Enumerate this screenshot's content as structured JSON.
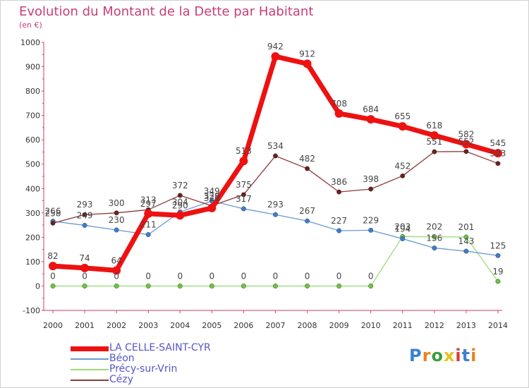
{
  "title": "Evolution du Montant de la Dette par Habitant",
  "unit_label": "(en €)",
  "logo_text": "Proxiti",
  "colors": {
    "title": "#c73e7a",
    "axis": "#c73e7a",
    "legend_text": "#5555cc",
    "logo": [
      "#3a7fd6",
      "#e8831f",
      "#3a9e3a",
      "#e8c21f",
      "#d63a3a",
      "#3a7fd6",
      "#e8831f"
    ]
  },
  "chart_data": {
    "type": "line",
    "title": "Evolution du Montant de la Dette par Habitant",
    "subtitle": "(en €)",
    "x": [
      "2000",
      "2001",
      "2002",
      "2003",
      "2004",
      "2005",
      "2006",
      "2007",
      "2008",
      "2009",
      "2010",
      "2011",
      "2012",
      "2013",
      "2014"
    ],
    "ylim": [
      -100,
      1000
    ],
    "yticks": [
      -100,
      0,
      100,
      200,
      300,
      400,
      500,
      600,
      700,
      800,
      900,
      1000
    ],
    "grid": false,
    "legend_position": "bottom-left",
    "series": [
      {
        "name": "LA CELLE-SAINT-CYR",
        "color": "#ee1111",
        "point_color": "#ee1111",
        "width": 7,
        "radius": 6,
        "values": [
          82,
          74,
          64,
          297,
          290,
          320,
          513,
          942,
          912,
          708,
          684,
          655,
          618,
          582,
          545
        ]
      },
      {
        "name": "Béon",
        "color": "#6b9bd1",
        "point_color": "#3a7fd6",
        "width": 1.3,
        "radius": 3.2,
        "values": [
          266,
          249,
          230,
          211,
          304,
          349,
          317,
          293,
          267,
          227,
          229,
          194,
          156,
          143,
          125
        ]
      },
      {
        "name": "Précy-sur-Vrin",
        "color": "#98dd78",
        "point_color": "#6cc83d",
        "width": 1.3,
        "radius": 3.2,
        "values": [
          0,
          0,
          0,
          0,
          0,
          0,
          0,
          0,
          0,
          0,
          0,
          203,
          202,
          201,
          19
        ]
      },
      {
        "name": "Cézy",
        "color": "#8b3a3a",
        "point_color": "#6e1f1f",
        "width": 1.3,
        "radius": 3.2,
        "values": [
          258,
          293,
          300,
          313,
          372,
          329,
          375,
          534,
          482,
          386,
          398,
          452,
          551,
          552,
          503
        ]
      }
    ],
    "data_labels": [
      {
        "series": 0,
        "values": [
          "82",
          "74",
          "64",
          "297",
          "290",
          "320",
          "513",
          "942",
          "912",
          "708",
          "684",
          "655",
          "618",
          "582",
          "545"
        ]
      },
      {
        "series": 1,
        "values": [
          "266",
          "249",
          "230",
          "211",
          "304",
          "349",
          "317",
          "293",
          "267",
          "227",
          "229",
          "194",
          "156",
          "143",
          "125"
        ]
      },
      {
        "series": 2,
        "values": [
          "0",
          "0",
          "0",
          "0",
          "0",
          "0",
          "0",
          "0",
          "0",
          "0",
          "0",
          "203",
          "202",
          "201",
          "19"
        ]
      },
      {
        "series": 3,
        "values": [
          "258",
          "293",
          "300",
          "313",
          "372",
          "329",
          "375",
          "534",
          "482",
          "386",
          "398",
          "452",
          "551",
          "552",
          "503"
        ]
      }
    ]
  }
}
